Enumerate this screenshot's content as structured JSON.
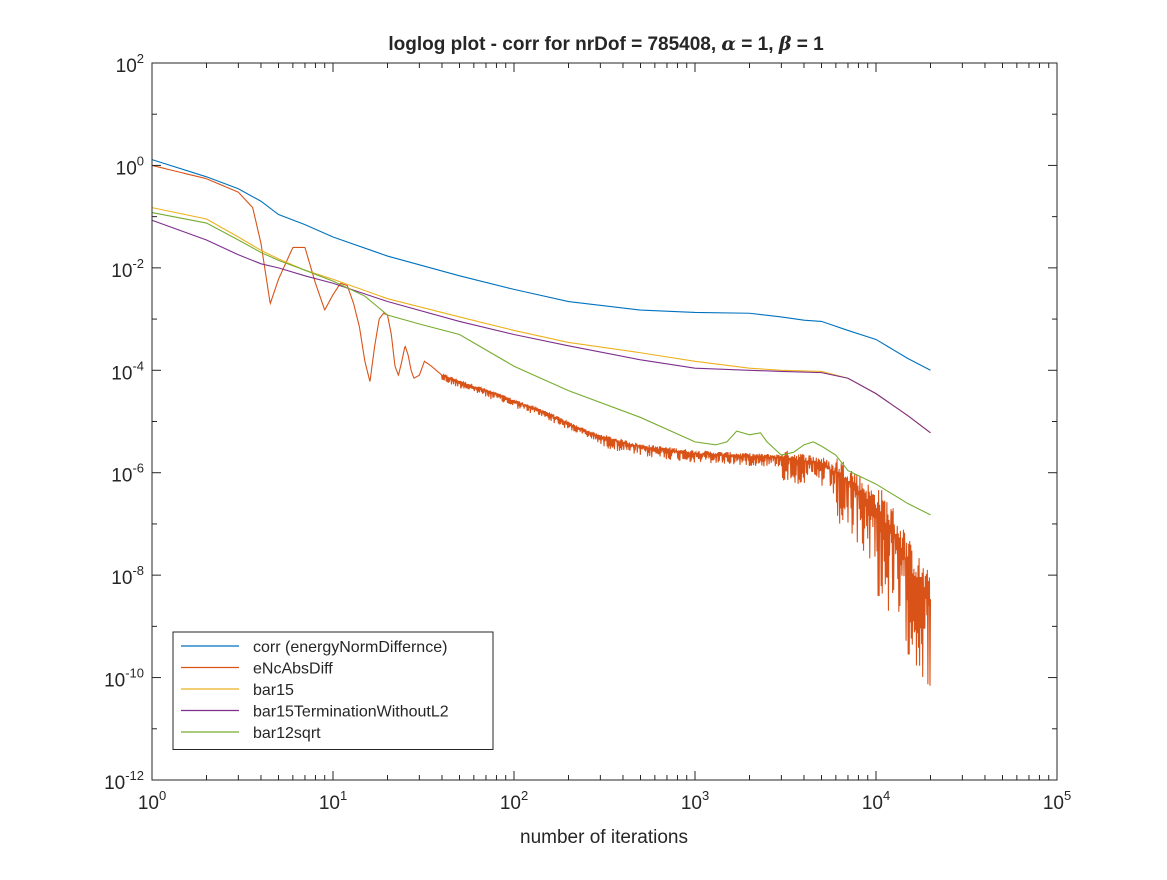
{
  "chart_data": {
    "type": "line",
    "title_parts": {
      "prefix": "loglog plot - corr for nrDof = 785408, ",
      "alpha_symbol": "α",
      "alpha_value": " = 1, ",
      "beta_symbol": "β",
      "beta_value": " = 1"
    },
    "xlabel": "number of iterations",
    "ylabel": "",
    "xscale": "log",
    "yscale": "log",
    "xlim": [
      1,
      100000
    ],
    "ylim": [
      1e-12,
      100
    ],
    "grid": false,
    "legend_position": "bottom-left",
    "x_ticks": [
      {
        "value": 1,
        "base": "10",
        "exp": "0"
      },
      {
        "value": 10,
        "base": "10",
        "exp": "1"
      },
      {
        "value": 100,
        "base": "10",
        "exp": "2"
      },
      {
        "value": 1000,
        "base": "10",
        "exp": "3"
      },
      {
        "value": 10000,
        "base": "10",
        "exp": "4"
      },
      {
        "value": 100000,
        "base": "10",
        "exp": "5"
      }
    ],
    "y_ticks": [
      {
        "value": 1e-12,
        "base": "10",
        "exp": "-12"
      },
      {
        "value": 1e-10,
        "base": "10",
        "exp": "-10"
      },
      {
        "value": 1e-08,
        "base": "10",
        "exp": "-8"
      },
      {
        "value": 1e-06,
        "base": "10",
        "exp": "-6"
      },
      {
        "value": 0.0001,
        "base": "10",
        "exp": "-4"
      },
      {
        "value": 0.01,
        "base": "10",
        "exp": "-2"
      },
      {
        "value": 1,
        "base": "10",
        "exp": "0"
      },
      {
        "value": 100,
        "base": "10",
        "exp": "2"
      }
    ],
    "series": [
      {
        "name": "corr (energyNormDiffernce)",
        "color": "#0072BD",
        "noise": 0.0,
        "points": [
          [
            1,
            1.3
          ],
          [
            2,
            0.6
          ],
          [
            3,
            0.35
          ],
          [
            4,
            0.2
          ],
          [
            5,
            0.11
          ],
          [
            7,
            0.07
          ],
          [
            10,
            0.04
          ],
          [
            20,
            0.017
          ],
          [
            50,
            0.007
          ],
          [
            100,
            0.0038
          ],
          [
            200,
            0.0022
          ],
          [
            500,
            0.0015
          ],
          [
            1000,
            0.00135
          ],
          [
            2000,
            0.0013
          ],
          [
            3000,
            0.0011
          ],
          [
            4000,
            0.00095
          ],
          [
            5000,
            0.0009
          ],
          [
            7000,
            0.0006
          ],
          [
            10000,
            0.0004
          ],
          [
            15000,
            0.00017
          ],
          [
            20000,
            0.0001
          ]
        ]
      },
      {
        "name": "eNcAbsDiff",
        "color": "#D95319",
        "noise": 0.0,
        "points": [
          [
            1,
            1.0
          ],
          [
            2,
            0.55
          ],
          [
            3,
            0.3
          ],
          [
            3.6,
            0.15
          ],
          [
            4,
            0.03
          ],
          [
            4.5,
            0.002
          ],
          [
            5,
            0.006
          ],
          [
            6,
            0.025
          ],
          [
            7,
            0.025
          ],
          [
            8,
            0.005
          ],
          [
            9,
            0.0015
          ],
          [
            10,
            0.003
          ],
          [
            11,
            0.005
          ],
          [
            12,
            0.0045
          ],
          [
            13,
            0.002
          ],
          [
            14,
            0.0007
          ],
          [
            15,
            0.00015
          ],
          [
            16,
            6e-05
          ],
          [
            17,
            0.0003
          ],
          [
            18,
            0.001
          ],
          [
            19,
            0.0013
          ],
          [
            20,
            0.0012
          ],
          [
            21,
            0.0005
          ],
          [
            22,
            0.00012
          ],
          [
            23,
            8e-05
          ],
          [
            24,
            0.00015
          ],
          [
            25,
            0.0003
          ],
          [
            26,
            0.0002
          ],
          [
            27,
            0.0001
          ],
          [
            28,
            7e-05
          ],
          [
            30,
            8e-05
          ],
          [
            32,
            0.00015
          ],
          [
            35,
            0.00012
          ],
          [
            40,
            8e-05
          ],
          [
            50,
            6e-05
          ],
          [
            70,
            4e-05
          ],
          [
            100,
            2.5e-05
          ],
          [
            150,
            1.5e-05
          ],
          [
            200,
            9e-06
          ],
          [
            300,
            5e-06
          ],
          [
            500,
            3.2e-06
          ],
          [
            700,
            2.8e-06
          ],
          [
            1000,
            2.4e-06
          ],
          [
            2000,
            2.1e-06
          ],
          [
            3000,
            2e-06
          ],
          [
            5000,
            1.5e-06
          ],
          [
            7000,
            7e-07
          ],
          [
            10000,
            2e-07
          ],
          [
            13000,
            5e-08
          ],
          [
            16000,
            1e-08
          ],
          [
            20000,
            3e-09
          ]
        ],
        "noise_series": true
      },
      {
        "name": "bar15",
        "color": "#EDB120",
        "noise": 0.0,
        "points": [
          [
            1,
            0.15
          ],
          [
            2,
            0.09
          ],
          [
            3,
            0.04
          ],
          [
            4,
            0.022
          ],
          [
            5,
            0.015
          ],
          [
            7,
            0.009
          ],
          [
            10,
            0.006
          ],
          [
            20,
            0.0025
          ],
          [
            50,
            0.0011
          ],
          [
            100,
            0.0006
          ],
          [
            200,
            0.00035
          ],
          [
            500,
            0.00022
          ],
          [
            1000,
            0.00015
          ],
          [
            2000,
            0.00011
          ],
          [
            3000,
            0.0001
          ],
          [
            5000,
            9.5e-05
          ],
          [
            7000,
            7e-05
          ],
          [
            10000,
            3.5e-05
          ],
          [
            15000,
            1.3e-05
          ],
          [
            20000,
            6e-06
          ]
        ]
      },
      {
        "name": "bar15TerminationWithoutL2",
        "color": "#7E2F8E",
        "noise": 0.0,
        "points": [
          [
            1,
            0.085
          ],
          [
            2,
            0.035
          ],
          [
            3,
            0.018
          ],
          [
            4,
            0.012
          ],
          [
            5,
            0.01
          ],
          [
            7,
            0.007
          ],
          [
            10,
            0.005
          ],
          [
            20,
            0.0022
          ],
          [
            50,
            0.0009
          ],
          [
            100,
            0.0005
          ],
          [
            200,
            0.0003
          ],
          [
            500,
            0.00016
          ],
          [
            1000,
            0.00011
          ],
          [
            2000,
            0.0001
          ],
          [
            3000,
            9.5e-05
          ],
          [
            5000,
            9e-05
          ],
          [
            7000,
            7e-05
          ],
          [
            10000,
            3.5e-05
          ],
          [
            15000,
            1.3e-05
          ],
          [
            20000,
            6e-06
          ]
        ]
      },
      {
        "name": "bar12sqrt",
        "color": "#77AC30",
        "noise": 0.0,
        "points": [
          [
            1,
            0.12
          ],
          [
            2,
            0.075
          ],
          [
            3,
            0.035
          ],
          [
            4,
            0.02
          ],
          [
            5,
            0.014
          ],
          [
            7,
            0.009
          ],
          [
            10,
            0.0055
          ],
          [
            15,
            0.0028
          ],
          [
            20,
            0.0012
          ],
          [
            30,
            0.0008
          ],
          [
            50,
            0.0005
          ],
          [
            100,
            0.00012
          ],
          [
            200,
            4e-05
          ],
          [
            500,
            1.2e-05
          ],
          [
            1000,
            4e-06
          ],
          [
            1300,
            3.5e-06
          ],
          [
            1500,
            4e-06
          ],
          [
            1700,
            6.5e-06
          ],
          [
            2000,
            5.5e-06
          ],
          [
            2300,
            6e-06
          ],
          [
            2500,
            4e-06
          ],
          [
            3000,
            2.2e-06
          ],
          [
            3500,
            2.5e-06
          ],
          [
            4000,
            3.5e-06
          ],
          [
            4500,
            4e-06
          ],
          [
            5000,
            3.3e-06
          ],
          [
            6000,
            2.2e-06
          ],
          [
            7000,
            1.1e-06
          ],
          [
            10000,
            6e-07
          ],
          [
            15000,
            2.5e-07
          ],
          [
            20000,
            1.5e-07
          ]
        ]
      }
    ]
  }
}
